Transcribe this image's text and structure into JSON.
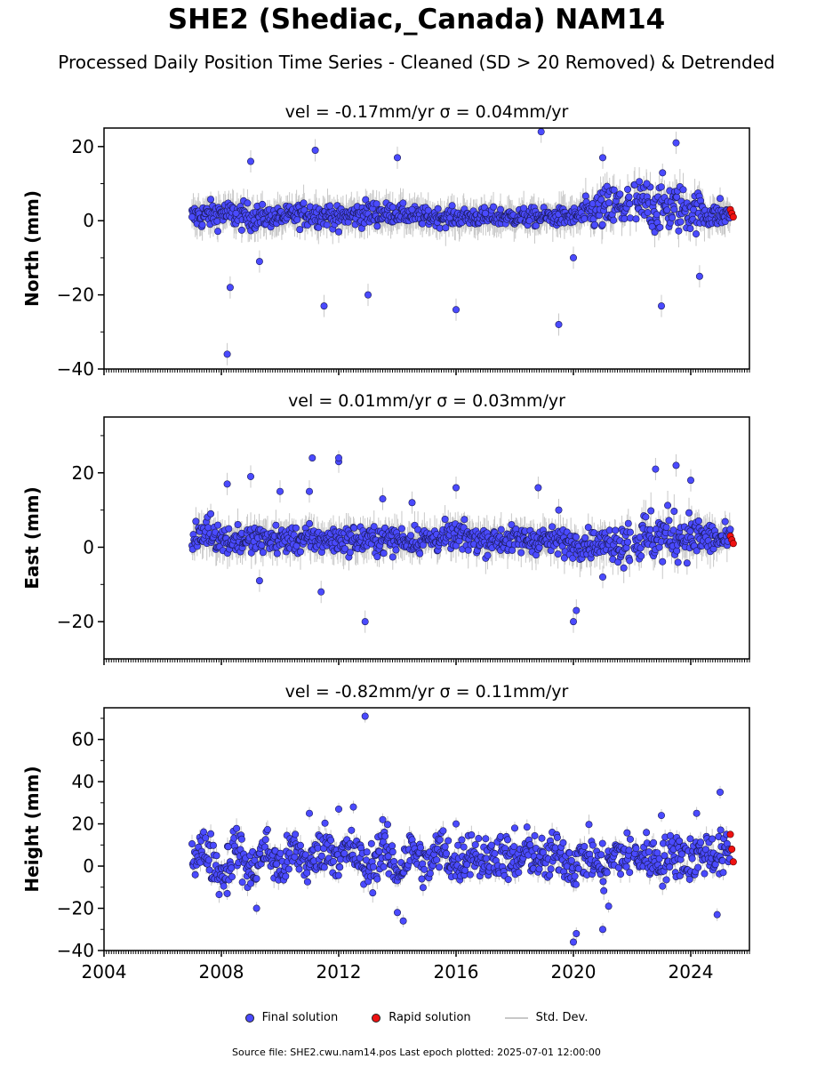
{
  "title": "SHE2 (Shediac,_Canada) NAM14",
  "subtitle": "Processed Daily Position Time Series - Cleaned (SD > 20 Removed) & Detrended",
  "legend": {
    "final": "Final solution",
    "rapid": "Rapid solution",
    "std": "Std. Dev."
  },
  "footnote": "Source file: SHE2.cwu.nam14.pos  Last epoch plotted: 2025-07-01 12:00:00",
  "colors": {
    "final": "#4a4aff",
    "rapid": "#ee1111",
    "std": "#c8c8c8"
  },
  "chart_data": [
    {
      "type": "scatter",
      "title": "vel = -0.17mm/yr   σ = 0.04mm/yr",
      "ylabel": "North (mm)",
      "xlim": [
        2004,
        2026
      ],
      "ylim": [
        -40,
        25
      ],
      "yticks": [
        -40,
        -20,
        0,
        20
      ],
      "series": [
        {
          "name": "Final solution",
          "x": [
            2007.0,
            2008.2,
            2008.3,
            2008.5,
            2009.0,
            2009.3,
            2011.2,
            2011.5,
            2011.7,
            2012.0,
            2013.0,
            2014.0,
            2014.5,
            2016.0,
            2017.0,
            2018.5,
            2018.9,
            2019.5,
            2020.0,
            2021.0,
            2022.5,
            2023.0,
            2023.5,
            2024.3,
            2025.0
          ],
          "y": [
            1,
            -36,
            -18,
            2,
            16,
            -11,
            19,
            -23,
            4,
            -3,
            -20,
            17,
            3,
            -24,
            2,
            0,
            24,
            -28,
            -10,
            17,
            10,
            -23,
            21,
            -15,
            6
          ]
        },
        {
          "name": "Rapid solution",
          "x": [
            2025.35,
            2025.4,
            2025.45
          ],
          "y": [
            3,
            2,
            1
          ]
        }
      ],
      "smooth": {
        "x": [
          2007.0,
          2008.0,
          2009.0,
          2010.0,
          2011.0,
          2012.0,
          2013.0,
          2014.0,
          2015.0,
          2016.0,
          2017.0,
          2018.0,
          2019.0,
          2020.0,
          2021.0,
          2022.0,
          2023.0,
          2024.0,
          2025.0,
          2025.4
        ],
        "y": [
          1,
          2,
          1,
          1,
          2,
          1,
          2,
          2,
          1,
          1,
          1,
          1,
          1,
          1,
          3,
          4,
          4,
          3,
          1,
          2
        ],
        "spread": [
          3,
          3,
          3,
          2,
          3,
          2,
          3,
          2,
          2,
          2,
          2,
          2,
          2,
          2,
          5,
          6,
          6,
          5,
          2,
          2
        ]
      },
      "gaps": [
        [
          2021.95,
          2022.05
        ]
      ]
    },
    {
      "type": "scatter",
      "title": "vel = 0.01mm/yr   σ = 0.03mm/yr",
      "ylabel": "East (mm)",
      "xlim": [
        2004,
        2026
      ],
      "ylim": [
        -30,
        35
      ],
      "yticks": [
        -20,
        0,
        20
      ],
      "series": [
        {
          "name": "Final solution",
          "x": [
            2008.2,
            2009.0,
            2009.3,
            2010.0,
            2011.0,
            2011.4,
            2012.0,
            2012.9,
            2013.5,
            2014.5,
            2016.0,
            2018.8,
            2019.5,
            2020.0,
            2020.1,
            2021.0,
            2022.8,
            2023.5,
            2024.0
          ],
          "y": [
            17,
            19,
            -9,
            15,
            15,
            -12,
            23,
            -20,
            13,
            12,
            16,
            16,
            10,
            -20,
            -17,
            -8,
            21,
            22,
            18
          ],
          "extra": [
            [
              2011.1,
              24
            ],
            [
              2012.0,
              24
            ]
          ]
        },
        {
          "name": "Rapid solution",
          "x": [
            2025.35,
            2025.4,
            2025.45
          ],
          "y": [
            3,
            2,
            1
          ]
        }
      ],
      "smooth": {
        "x": [
          2007.0,
          2007.6,
          2008.0,
          2009.0,
          2010.0,
          2011.0,
          2012.0,
          2013.0,
          2014.0,
          2015.0,
          2016.0,
          2017.0,
          2018.0,
          2019.0,
          2020.0,
          2021.0,
          2022.0,
          2023.0,
          2024.0,
          2025.0,
          2025.4
        ],
        "y": [
          1,
          5,
          2,
          2,
          2,
          2,
          2,
          2,
          2,
          2,
          3,
          2,
          2,
          2,
          1,
          1,
          2,
          3,
          3,
          2,
          2
        ],
        "spread": [
          3,
          4,
          3,
          3,
          3,
          3,
          3,
          3,
          3,
          3,
          3,
          3,
          3,
          3,
          3,
          3,
          6,
          6,
          5,
          3,
          3
        ]
      },
      "gaps": [
        [
          2021.95,
          2022.05
        ]
      ]
    },
    {
      "type": "scatter",
      "title": "vel = -0.82mm/yr   σ = 0.11mm/yr",
      "ylabel": "Height (mm)",
      "xlim": [
        2004,
        2026
      ],
      "ylim": [
        -40,
        75
      ],
      "yticks": [
        -40,
        -20,
        0,
        20,
        40,
        60
      ],
      "xticks": [
        2004,
        2008,
        2012,
        2016,
        2020,
        2024
      ],
      "series": [
        {
          "name": "Final solution",
          "x": [
            2008.2,
            2009.2,
            2011.0,
            2012.0,
            2012.5,
            2012.9,
            2013.5,
            2014.0,
            2014.2,
            2016.0,
            2018.0,
            2020.0,
            2020.1,
            2021.0,
            2021.2,
            2023.0,
            2024.2,
            2024.9,
            2025.0
          ],
          "y": [
            -13,
            -20,
            25,
            27,
            28,
            71,
            22,
            -22,
            -26,
            20,
            18,
            -36,
            -32,
            -30,
            -19,
            24,
            25,
            -23,
            35
          ]
        },
        {
          "name": "Rapid solution",
          "x": [
            2025.35,
            2025.4,
            2025.45
          ],
          "y": [
            15,
            8,
            2
          ]
        }
      ],
      "smooth": {
        "x": [
          2007.0,
          2007.5,
          2008.0,
          2008.5,
          2009.0,
          2009.5,
          2010.0,
          2010.5,
          2011.0,
          2011.5,
          2012.0,
          2012.5,
          2013.0,
          2013.5,
          2014.0,
          2014.5,
          2015.0,
          2015.5,
          2016.0,
          2016.5,
          2017.0,
          2017.5,
          2018.0,
          2018.5,
          2019.0,
          2019.5,
          2020.0,
          2020.5,
          2021.0,
          2021.5,
          2022.0,
          2022.5,
          2023.0,
          2023.5,
          2024.0,
          2024.5,
          2025.0,
          2025.4
        ],
        "y": [
          5,
          8,
          -5,
          10,
          -4,
          9,
          -2,
          8,
          0,
          10,
          5,
          7,
          -3,
          9,
          -3,
          8,
          -1,
          9,
          0,
          8,
          2,
          7,
          0,
          8,
          1,
          7,
          0,
          6,
          -2,
          6,
          4,
          5,
          2,
          6,
          3,
          7,
          5,
          6
        ],
        "spread": [
          9,
          9,
          9,
          9,
          9,
          9,
          9,
          9,
          9,
          9,
          9,
          9,
          9,
          9,
          9,
          9,
          9,
          9,
          9,
          9,
          9,
          9,
          9,
          9,
          9,
          9,
          9,
          9,
          9,
          9,
          9,
          9,
          9,
          9,
          9,
          9,
          9,
          9
        ]
      },
      "gaps": [
        [
          2021.95,
          2022.05
        ]
      ]
    }
  ]
}
